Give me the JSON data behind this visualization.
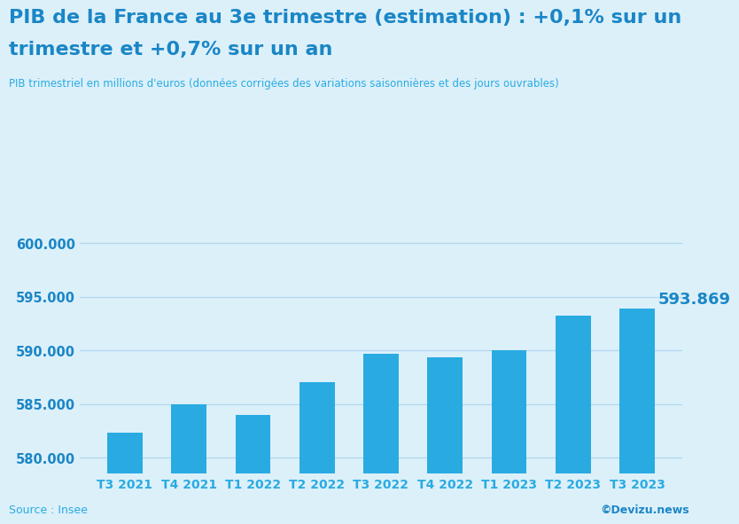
{
  "title_line1": "PIB de la France au 3e trimestre (estimation) : +0,1% sur un",
  "title_line2": "trimestre et +0,7% sur un an",
  "subtitle": "PIB trimestriel en millions d'euros (données corrigées des variations saisonnières et des jours ouvrables)",
  "source_left": "Source : Insee",
  "source_right": "©Devizu.news",
  "categories": [
    "T3 2021",
    "T4 2021",
    "T1 2022",
    "T2 2022",
    "T3 2022",
    "T4 2022",
    "T1 2023",
    "T2 2023",
    "T3 2023"
  ],
  "values": [
    582300,
    585000,
    584000,
    587000,
    589700,
    589300,
    590000,
    593200,
    593869
  ],
  "bar_color": "#29ABE2",
  "last_bar_label": "593.869",
  "yticks": [
    580000,
    585000,
    590000,
    595000,
    600000
  ],
  "ylim_min": 578500,
  "ylim_max": 601800,
  "background_color": "#DCF0FA",
  "grid_color": "#B0D8EE",
  "text_color": "#29ABE2",
  "title_color": "#1A86C6",
  "title_fontsize": 16,
  "subtitle_fontsize": 8.5,
  "tick_fontsize": 10.5,
  "xlabel_fontsize": 10,
  "annotation_fontsize": 13
}
